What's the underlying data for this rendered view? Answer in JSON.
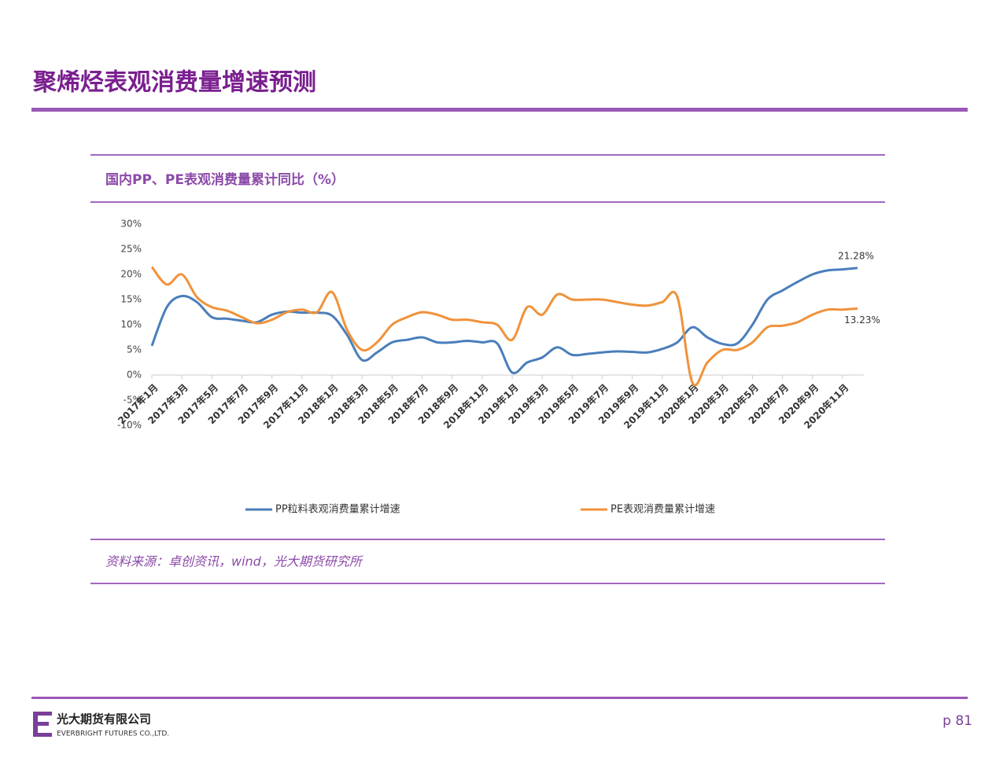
{
  "header": {
    "title": "聚烯烃表观消费量增速预测"
  },
  "chart_data": {
    "type": "line",
    "title": "国内PP、PE表观消费量累计同比（%）",
    "source": "资料来源：卓创资讯，wind，光大期货研究所",
    "categories": [
      "2017年1月",
      null,
      "2017年3月",
      null,
      "2017年5月",
      null,
      "2017年7月",
      null,
      "2017年9月",
      null,
      "2017年11月",
      null,
      "2018年1月",
      null,
      "2018年3月",
      null,
      "2018年5月",
      null,
      "2018年7月",
      null,
      "2018年9月",
      null,
      "2018年11月",
      null,
      "2019年1月",
      null,
      "2019年3月",
      null,
      "2019年5月",
      null,
      "2019年7月",
      null,
      "2019年9月",
      null,
      "2019年11月",
      null,
      "2020年1月",
      null,
      "2020年3月",
      null,
      "2020年5月",
      null,
      "2020年7月",
      null,
      "2020年9月",
      null,
      "2020年11月",
      null
    ],
    "series": [
      {
        "name": "PP粒料表观消费量累计增速",
        "color": "#4a7ebb",
        "values": [
          5.8,
          13.5,
          15.7,
          14.5,
          11.5,
          11.2,
          10.8,
          10.5,
          12,
          12.6,
          12.4,
          12.4,
          11.8,
          8,
          3,
          4.5,
          6.5,
          7,
          7.5,
          6.5,
          6.5,
          6.8,
          6.5,
          6.3,
          0.5,
          2.5,
          3.5,
          5.5,
          4,
          4.2,
          4.5,
          4.7,
          4.6,
          4.5,
          5.2,
          6.5,
          9.5,
          7.5,
          6.2,
          6.3,
          10,
          15,
          16.8,
          18.5,
          20,
          20.8,
          21,
          21.28
        ],
        "value_labels": [
          null,
          null,
          null,
          null,
          null,
          null,
          null,
          null,
          null,
          null,
          null,
          null,
          null,
          null,
          null,
          null,
          null,
          null,
          null,
          null,
          null,
          null,
          null,
          null,
          null,
          null,
          null,
          null,
          null,
          null,
          null,
          null,
          null,
          null,
          null,
          null,
          null,
          null,
          null,
          null,
          null,
          null,
          null,
          null,
          null,
          null,
          null,
          "21.28%"
        ]
      },
      {
        "name": "PE表观消费量累计增速",
        "color": "#f0923a",
        "values": [
          21.5,
          18,
          20,
          15.5,
          13.5,
          12.8,
          11.5,
          10.3,
          11,
          12.5,
          13,
          12.5,
          16.5,
          9,
          5,
          6.5,
          10,
          11.5,
          12.5,
          12,
          11,
          11,
          10.5,
          10,
          7,
          13.5,
          12,
          16,
          15,
          15,
          15,
          14.5,
          14,
          13.8,
          14.5,
          15.5,
          -1.5,
          2.5,
          5,
          5,
          6.5,
          9.5,
          9.8,
          10.5,
          12,
          13,
          13,
          13.23
        ],
        "value_labels": [
          null,
          null,
          null,
          null,
          null,
          null,
          null,
          null,
          null,
          null,
          null,
          null,
          null,
          null,
          null,
          null,
          null,
          null,
          null,
          null,
          null,
          null,
          null,
          null,
          null,
          null,
          null,
          null,
          null,
          null,
          null,
          null,
          null,
          null,
          null,
          null,
          null,
          null,
          null,
          null,
          null,
          null,
          null,
          null,
          null,
          null,
          null,
          "13.23%"
        ]
      }
    ],
    "ylim": [
      -10,
      30
    ],
    "yticks": [
      {
        "value": -10,
        "label": "-10%"
      },
      {
        "value": -5,
        "label": "-5%"
      },
      {
        "value": 0,
        "label": "0%"
      },
      {
        "value": 5,
        "label": "5%"
      },
      {
        "value": 10,
        "label": "10%"
      },
      {
        "value": 15,
        "label": "15%"
      },
      {
        "value": 20,
        "label": "20%"
      },
      {
        "value": 25,
        "label": "25%"
      },
      {
        "value": 30,
        "label": "30%"
      }
    ],
    "grid": false,
    "legend": "bottom"
  },
  "footer": {
    "company_cn": "光大期货有限公司",
    "company_en": "EVERBRIGHT FUTURES CO.,LTD.",
    "page": "p 81"
  }
}
